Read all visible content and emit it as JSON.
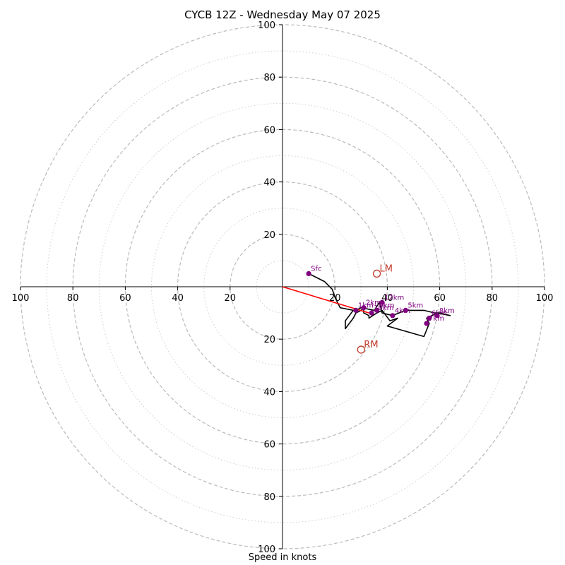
{
  "chart_data": {
    "type": "scatter",
    "subtype": "hodograph",
    "title": "CYCB 12Z - Wednesday May 07 2025",
    "xlabel": "Speed in knots",
    "ylabel": "",
    "xlim": [
      -100,
      100
    ],
    "ylim": [
      -100,
      100
    ],
    "rings_major": [
      20,
      40,
      60,
      80,
      100
    ],
    "rings_minor": [
      10,
      30,
      50,
      70,
      90
    ],
    "tick_labels": {
      "left": [
        "100",
        "80",
        "60",
        "40",
        "20"
      ],
      "right": [
        "20",
        "40",
        "60",
        "80",
        "100"
      ],
      "top": [
        "100",
        "80",
        "60",
        "40",
        "20"
      ],
      "bottom": [
        "20",
        "40",
        "60",
        "80",
        "100"
      ]
    },
    "colors": {
      "trace": "#000000",
      "height_markers": "#800080",
      "storm_motion": "#c0392b",
      "shear_vector": "#ff0000",
      "rings": "#bbbbbb"
    },
    "trace": [
      [
        10,
        5
      ],
      [
        16,
        2
      ],
      [
        19,
        -1
      ],
      [
        20,
        -4
      ],
      [
        22,
        -8
      ],
      [
        27,
        -9
      ],
      [
        24,
        -13
      ],
      [
        24,
        -16
      ],
      [
        27,
        -12
      ],
      [
        28,
        -10
      ],
      [
        30,
        -9
      ],
      [
        31,
        -8
      ],
      [
        31,
        -10
      ],
      [
        33,
        -11
      ],
      [
        33,
        -12
      ],
      [
        36,
        -10
      ],
      [
        38,
        -9
      ],
      [
        41,
        -13
      ],
      [
        44,
        -12
      ],
      [
        40,
        -15
      ],
      [
        54,
        -19
      ],
      [
        56,
        -14
      ],
      [
        55,
        -12
      ],
      [
        59,
        -10
      ],
      [
        64,
        -11
      ],
      [
        60,
        -10
      ],
      [
        58,
        -10
      ],
      [
        54,
        -9
      ],
      [
        47,
        -9
      ],
      [
        42,
        -11
      ],
      [
        38,
        -10
      ],
      [
        37,
        -6
      ],
      [
        35,
        -9
      ],
      [
        30,
        -8
      ],
      [
        28,
        -9
      ]
    ],
    "height_markers": [
      {
        "label": "Sfc",
        "u": 10,
        "v": 5
      },
      {
        "label": "2km",
        "u": 31,
        "v": -8
      },
      {
        "label": "1km",
        "u": 28,
        "v": -9
      },
      {
        "label": "9km",
        "u": 36,
        "v": -9
      },
      {
        "label": "10km",
        "u": 34,
        "v": -10
      },
      {
        "label": "12km",
        "u": 38,
        "v": -6
      },
      {
        "label": "4km",
        "u": 42,
        "v": -11
      },
      {
        "label": "5km",
        "u": 47,
        "v": -9
      },
      {
        "label": "8km",
        "u": 59,
        "v": -11
      },
      {
        "label": "6km",
        "u": 56,
        "v": -12
      },
      {
        "label": "7km",
        "u": 55,
        "v": -14
      }
    ],
    "storm_motion": [
      {
        "label": "LM",
        "u": 36,
        "v": 5
      },
      {
        "label": "RM",
        "u": 30,
        "v": -24
      }
    ],
    "shear_vector": {
      "u": 33,
      "v": -10
    }
  }
}
